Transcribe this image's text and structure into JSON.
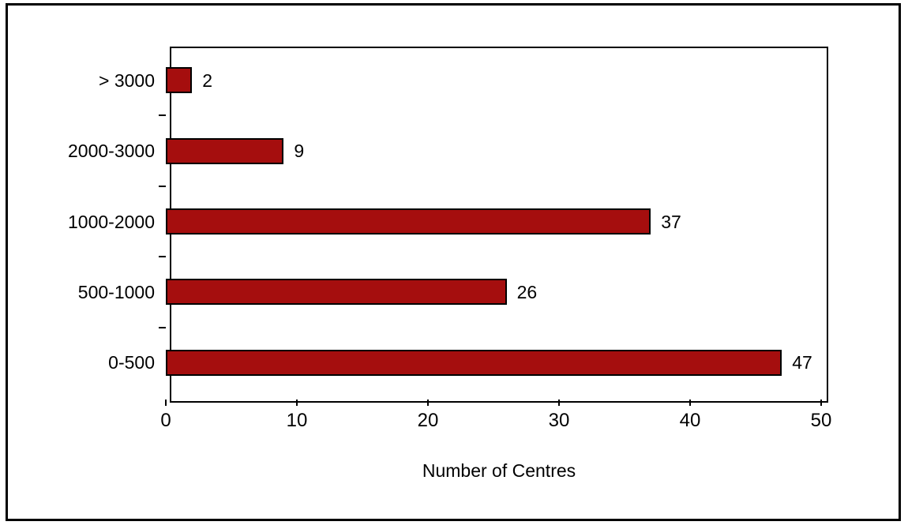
{
  "chart_data": {
    "type": "bar",
    "orientation": "horizontal",
    "title": "",
    "xlabel": "Number of Centres",
    "ylabel": "",
    "categories": [
      "> 3000",
      "2000-3000",
      "1000-2000",
      "500-1000",
      "0-500"
    ],
    "values": [
      2,
      9,
      37,
      26,
      47
    ],
    "xlim": [
      0,
      50
    ],
    "xticks": [
      0,
      10,
      20,
      30,
      40,
      50
    ],
    "grid": false,
    "legend": "none",
    "value_labels_shown": true,
    "colors": {
      "bar_fill": "#A50E0E",
      "bar_border": "#000000",
      "axis": "#000000",
      "text": "#000000",
      "background": "#FFFFFF"
    }
  }
}
